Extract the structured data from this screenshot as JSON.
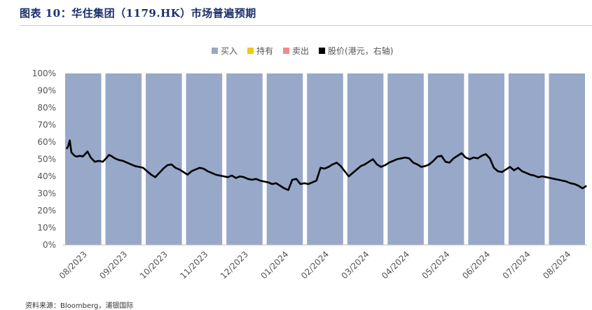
{
  "header": {
    "title": "图表 10：华住集团（1179.HK）市场普遍预期"
  },
  "footer": {
    "source": "资料来源：Bloomberg，浦银国际"
  },
  "chart_data": {
    "type": "bar",
    "title": "",
    "xlabel": "",
    "ylabel": "",
    "ylim": [
      0,
      1
    ],
    "y_ticks": [
      "0%",
      "10%",
      "20%",
      "30%",
      "40%",
      "50%",
      "60%",
      "70%",
      "80%",
      "90%",
      "100%"
    ],
    "categories": [
      "08/2023",
      "09/2023",
      "10/2023",
      "11/2023",
      "12/2023",
      "01/2024",
      "02/2024",
      "03/2024",
      "04/2024",
      "05/2024",
      "06/2024",
      "07/2024",
      "08/2024"
    ],
    "legend": {
      "placement": "top",
      "entries": [
        {
          "name": "买入",
          "color": "#97a8c9"
        },
        {
          "name": "持有",
          "color": "#f5c518"
        },
        {
          "name": "卖出",
          "color": "#f08a8a"
        },
        {
          "name": "股价(港元，右轴)",
          "color": "#000000"
        }
      ]
    },
    "series": [
      {
        "name": "买入",
        "values": [
          1,
          1,
          1,
          1,
          1,
          1,
          1,
          1,
          1,
          1,
          1,
          1,
          1
        ]
      },
      {
        "name": "持有",
        "values": [
          0,
          0,
          0,
          0,
          0,
          0,
          0,
          0,
          0,
          0,
          0,
          0,
          0
        ]
      },
      {
        "name": "卖出",
        "values": [
          0,
          0,
          0,
          0,
          0,
          0,
          0,
          0,
          0,
          0,
          0,
          0,
          0
        ]
      }
    ],
    "line_series": {
      "name": "股价(港元，右轴)",
      "x": [
        0,
        0.04,
        0.08,
        0.12,
        0.16,
        0.2,
        0.26,
        0.33,
        0.4,
        0.46,
        0.52,
        0.6,
        0.7,
        0.8,
        0.9,
        1.0,
        1.05,
        1.1,
        1.2,
        1.3,
        1.4,
        1.5,
        1.6,
        1.7,
        1.8,
        1.9,
        2.0,
        2.1,
        2.2,
        2.3,
        2.4,
        2.5,
        2.6,
        2.7,
        2.8,
        2.9,
        3.0,
        3.1,
        3.2,
        3.3,
        3.4,
        3.5,
        3.6,
        3.7,
        3.8,
        3.9,
        4.0,
        4.1,
        4.2,
        4.3,
        4.4,
        4.5,
        4.6,
        4.7,
        4.8,
        4.9,
        5.0,
        5.1,
        5.2,
        5.3,
        5.4,
        5.5,
        5.6,
        5.7,
        5.8,
        5.9,
        6.0,
        6.1,
        6.2,
        6.3,
        6.4,
        6.5,
        6.6,
        6.7,
        6.8,
        6.9,
        7.0,
        7.1,
        7.2,
        7.3,
        7.4,
        7.5,
        7.6,
        7.7,
        7.8,
        7.9,
        8.0,
        8.1,
        8.2,
        8.3,
        8.4,
        8.5,
        8.6,
        8.7,
        8.8,
        8.9,
        9.0,
        9.1,
        9.2,
        9.3,
        9.4,
        9.5,
        9.6,
        9.7,
        9.8,
        9.9,
        10.0,
        10.1,
        10.2,
        10.3,
        10.4,
        10.5,
        10.6,
        10.7,
        10.8,
        10.9,
        11.0,
        11.1,
        11.2,
        11.3,
        11.4,
        11.5,
        11.6,
        11.7,
        11.8,
        11.9,
        12.0,
        12.1,
        12.2,
        12.3,
        12.4,
        12.5,
        12.6,
        12.7,
        12.8,
        12.9
      ],
      "values": [
        0.56,
        0.575,
        0.61,
        0.54,
        0.53,
        0.52,
        0.515,
        0.52,
        0.515,
        0.53,
        0.545,
        0.51,
        0.485,
        0.49,
        0.485,
        0.51,
        0.525,
        0.52,
        0.505,
        0.495,
        0.49,
        0.48,
        0.47,
        0.46,
        0.455,
        0.45,
        0.43,
        0.41,
        0.395,
        0.42,
        0.445,
        0.465,
        0.47,
        0.45,
        0.44,
        0.425,
        0.41,
        0.43,
        0.44,
        0.45,
        0.445,
        0.43,
        0.42,
        0.41,
        0.405,
        0.4,
        0.395,
        0.405,
        0.39,
        0.4,
        0.395,
        0.385,
        0.38,
        0.385,
        0.375,
        0.37,
        0.365,
        0.355,
        0.36,
        0.345,
        0.33,
        0.32,
        0.38,
        0.385,
        0.355,
        0.36,
        0.355,
        0.365,
        0.375,
        0.45,
        0.445,
        0.455,
        0.47,
        0.48,
        0.46,
        0.43,
        0.4,
        0.42,
        0.44,
        0.46,
        0.47,
        0.485,
        0.5,
        0.47,
        0.455,
        0.465,
        0.48,
        0.49,
        0.5,
        0.505,
        0.51,
        0.505,
        0.48,
        0.47,
        0.455,
        0.46,
        0.47,
        0.49,
        0.515,
        0.52,
        0.485,
        0.48,
        0.505,
        0.52,
        0.535,
        0.51,
        0.5,
        0.51,
        0.505,
        0.52,
        0.53,
        0.505,
        0.45,
        0.43,
        0.425,
        0.44,
        0.455,
        0.435,
        0.45,
        0.43,
        0.42,
        0.41,
        0.405,
        0.395,
        0.4,
        0.395,
        0.39,
        0.385,
        0.38,
        0.375,
        0.37,
        0.36,
        0.355,
        0.345,
        0.33,
        0.345
      ]
    }
  }
}
